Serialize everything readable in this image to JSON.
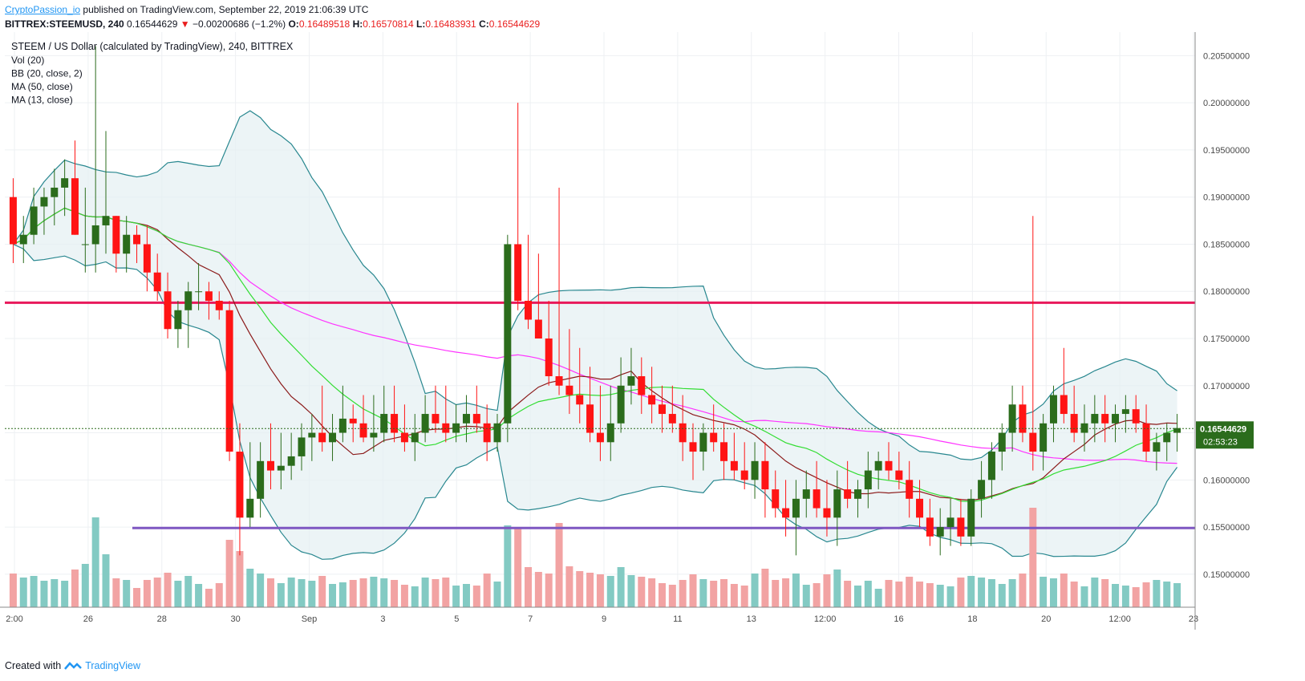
{
  "header": {
    "author": "CryptoPassion_io",
    "published_text": " published on TradingView.com, September 22, 2019 21:06:39 UTC",
    "symbol": "BITTREX:STEEMUSD, 240",
    "last": "0.16544629",
    "change_arrow": "▼",
    "change": "−0.00200686 (−1.2%)",
    "o_label": "O:",
    "o": "0.16489518",
    "h_label": "H:",
    "h": "0.16570814",
    "l_label": "L:",
    "l": "0.16483931",
    "c_label": "C:",
    "c": "0.16544629"
  },
  "footer": {
    "created_with": "Created with",
    "brand": "TradingView"
  },
  "colors": {
    "up": "#2b6c1c",
    "down": "#ff1414",
    "bb_fill": "#e4f0f2",
    "bb_line": "#28878f",
    "ma50": "#ff33ff",
    "ma13": "#8b1a1a",
    "basis": "#33dd33",
    "resistance": "#e8195b",
    "support": "#7e57c2",
    "vol_up": "#83cac3",
    "vol_down": "#f2a3a3",
    "price_tag": "#2b6c1c"
  },
  "chart_data": {
    "type": "candlestick",
    "title": "STEEM / US Dollar (calculated by TradingView), 240, BITTREX",
    "indicators": [
      "Vol (20)",
      "BB (20, close, 2)",
      "MA (50, close)",
      "MA (13, close)"
    ],
    "x_tick_labels": [
      "2:00",
      "26",
      "28",
      "30",
      "Sep",
      "3",
      "5",
      "7",
      "9",
      "11",
      "13",
      "12:00",
      "16",
      "18",
      "20",
      "12:00",
      "23"
    ],
    "y_tick_labels": [
      "0.15000000",
      "0.15500000",
      "0.16000000",
      "0.16500000",
      "0.17000000",
      "0.17500000",
      "0.18000000",
      "0.18500000",
      "0.19000000",
      "0.19500000",
      "0.20000000",
      "0.20500000"
    ],
    "ylim": [
      0.1465,
      0.2075
    ],
    "current_price": "0.16544629",
    "countdown": "02:53:23",
    "horizontal_levels": [
      {
        "name": "resistance",
        "value": 0.1788
      },
      {
        "name": "support",
        "value": 0.1549
      }
    ],
    "candles": [
      [
        0.19,
        0.192,
        0.183,
        0.185
      ],
      [
        0.185,
        0.188,
        0.183,
        0.186
      ],
      [
        0.186,
        0.191,
        0.185,
        0.189
      ],
      [
        0.189,
        0.191,
        0.186,
        0.19
      ],
      [
        0.19,
        0.193,
        0.187,
        0.191
      ],
      [
        0.191,
        0.194,
        0.188,
        0.192
      ],
      [
        0.192,
        0.196,
        0.186,
        0.186
      ],
      [
        0.185,
        0.191,
        0.182,
        0.185
      ],
      [
        0.185,
        0.206,
        0.182,
        0.187
      ],
      [
        0.187,
        0.197,
        0.184,
        0.188
      ],
      [
        0.188,
        0.188,
        0.182,
        0.184
      ],
      [
        0.184,
        0.188,
        0.182,
        0.186
      ],
      [
        0.186,
        0.187,
        0.183,
        0.185
      ],
      [
        0.185,
        0.187,
        0.18,
        0.182
      ],
      [
        0.182,
        0.184,
        0.179,
        0.18
      ],
      [
        0.18,
        0.182,
        0.175,
        0.176
      ],
      [
        0.176,
        0.179,
        0.174,
        0.178
      ],
      [
        0.178,
        0.181,
        0.174,
        0.18
      ],
      [
        0.18,
        0.183,
        0.178,
        0.18
      ],
      [
        0.18,
        0.181,
        0.177,
        0.179
      ],
      [
        0.179,
        0.18,
        0.177,
        0.178
      ],
      [
        0.178,
        0.179,
        0.162,
        0.163
      ],
      [
        0.163,
        0.166,
        0.152,
        0.156
      ],
      [
        0.156,
        0.164,
        0.155,
        0.158
      ],
      [
        0.158,
        0.164,
        0.156,
        0.162
      ],
      [
        0.162,
        0.166,
        0.159,
        0.161
      ],
      [
        0.161,
        0.165,
        0.159,
        0.1615
      ],
      [
        0.1615,
        0.165,
        0.16,
        0.1625
      ],
      [
        0.1625,
        0.166,
        0.161,
        0.1645
      ],
      [
        0.1645,
        0.167,
        0.162,
        0.165
      ],
      [
        0.165,
        0.17,
        0.163,
        0.164
      ],
      [
        0.164,
        0.167,
        0.162,
        0.165
      ],
      [
        0.165,
        0.17,
        0.164,
        0.1665
      ],
      [
        0.1665,
        0.168,
        0.164,
        0.166
      ],
      [
        0.166,
        0.169,
        0.164,
        0.1645
      ],
      [
        0.1645,
        0.169,
        0.163,
        0.165
      ],
      [
        0.165,
        0.17,
        0.164,
        0.167
      ],
      [
        0.167,
        0.17,
        0.164,
        0.165
      ],
      [
        0.165,
        0.168,
        0.163,
        0.164
      ],
      [
        0.164,
        0.167,
        0.162,
        0.165
      ],
      [
        0.165,
        0.169,
        0.164,
        0.167
      ],
      [
        0.167,
        0.17,
        0.165,
        0.166
      ],
      [
        0.166,
        0.17,
        0.164,
        0.165
      ],
      [
        0.165,
        0.168,
        0.164,
        0.166
      ],
      [
        0.166,
        0.169,
        0.164,
        0.167
      ],
      [
        0.167,
        0.17,
        0.165,
        0.166
      ],
      [
        0.166,
        0.168,
        0.162,
        0.164
      ],
      [
        0.164,
        0.167,
        0.163,
        0.166
      ],
      [
        0.166,
        0.186,
        0.164,
        0.185
      ],
      [
        0.185,
        0.2,
        0.178,
        0.179
      ],
      [
        0.179,
        0.186,
        0.176,
        0.177
      ],
      [
        0.177,
        0.184,
        0.175,
        0.175
      ],
      [
        0.175,
        0.179,
        0.17,
        0.171
      ],
      [
        0.171,
        0.191,
        0.169,
        0.17
      ],
      [
        0.17,
        0.176,
        0.167,
        0.169
      ],
      [
        0.169,
        0.174,
        0.166,
        0.168
      ],
      [
        0.168,
        0.172,
        0.164,
        0.165
      ],
      [
        0.165,
        0.17,
        0.162,
        0.164
      ],
      [
        0.164,
        0.17,
        0.162,
        0.166
      ],
      [
        0.166,
        0.173,
        0.165,
        0.17
      ],
      [
        0.17,
        0.174,
        0.168,
        0.171
      ],
      [
        0.171,
        0.173,
        0.167,
        0.169
      ],
      [
        0.169,
        0.172,
        0.166,
        0.168
      ],
      [
        0.168,
        0.17,
        0.165,
        0.167
      ],
      [
        0.167,
        0.17,
        0.165,
        0.166
      ],
      [
        0.166,
        0.169,
        0.162,
        0.164
      ],
      [
        0.164,
        0.166,
        0.16,
        0.163
      ],
      [
        0.163,
        0.166,
        0.161,
        0.165
      ],
      [
        0.165,
        0.168,
        0.163,
        0.164
      ],
      [
        0.164,
        0.166,
        0.16,
        0.162
      ],
      [
        0.162,
        0.165,
        0.16,
        0.161
      ],
      [
        0.161,
        0.164,
        0.159,
        0.16
      ],
      [
        0.16,
        0.164,
        0.158,
        0.162
      ],
      [
        0.162,
        0.164,
        0.156,
        0.159
      ],
      [
        0.159,
        0.161,
        0.156,
        0.157
      ],
      [
        0.157,
        0.16,
        0.154,
        0.156
      ],
      [
        0.156,
        0.16,
        0.152,
        0.158
      ],
      [
        0.158,
        0.161,
        0.156,
        0.159
      ],
      [
        0.159,
        0.162,
        0.156,
        0.157
      ],
      [
        0.157,
        0.16,
        0.154,
        0.156
      ],
      [
        0.156,
        0.161,
        0.153,
        0.159
      ],
      [
        0.159,
        0.162,
        0.157,
        0.158
      ],
      [
        0.158,
        0.16,
        0.156,
        0.159
      ],
      [
        0.159,
        0.163,
        0.157,
        0.161
      ],
      [
        0.161,
        0.163,
        0.159,
        0.162
      ],
      [
        0.162,
        0.164,
        0.16,
        0.161
      ],
      [
        0.161,
        0.163,
        0.159,
        0.16
      ],
      [
        0.16,
        0.162,
        0.156,
        0.158
      ],
      [
        0.158,
        0.16,
        0.155,
        0.156
      ],
      [
        0.156,
        0.158,
        0.153,
        0.154
      ],
      [
        0.154,
        0.157,
        0.152,
        0.155
      ],
      [
        0.155,
        0.158,
        0.153,
        0.156
      ],
      [
        0.156,
        0.158,
        0.153,
        0.154
      ],
      [
        0.154,
        0.159,
        0.153,
        0.158
      ],
      [
        0.158,
        0.162,
        0.156,
        0.16
      ],
      [
        0.16,
        0.164,
        0.158,
        0.163
      ],
      [
        0.163,
        0.166,
        0.161,
        0.165
      ],
      [
        0.165,
        0.17,
        0.163,
        0.168
      ],
      [
        0.168,
        0.17,
        0.164,
        0.165
      ],
      [
        0.165,
        0.188,
        0.161,
        0.163
      ],
      [
        0.163,
        0.167,
        0.161,
        0.166
      ],
      [
        0.166,
        0.17,
        0.164,
        0.169
      ],
      [
        0.169,
        0.174,
        0.166,
        0.167
      ],
      [
        0.167,
        0.17,
        0.164,
        0.165
      ],
      [
        0.165,
        0.168,
        0.163,
        0.166
      ],
      [
        0.166,
        0.169,
        0.164,
        0.167
      ],
      [
        0.167,
        0.169,
        0.164,
        0.166
      ],
      [
        0.166,
        0.168,
        0.164,
        0.167
      ],
      [
        0.167,
        0.169,
        0.165,
        0.1675
      ],
      [
        0.1675,
        0.169,
        0.165,
        0.166
      ],
      [
        0.166,
        0.168,
        0.162,
        0.163
      ],
      [
        0.163,
        0.165,
        0.161,
        0.164
      ],
      [
        0.164,
        0.166,
        0.162,
        0.165
      ],
      [
        0.165,
        0.167,
        0.163,
        0.1655
      ]
    ],
    "volume_scale": [
      0,
      10
    ]
  }
}
